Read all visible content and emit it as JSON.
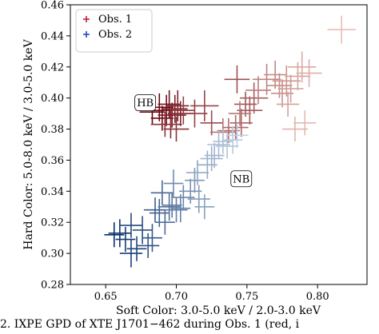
{
  "chart_data": {
    "type": "scatter",
    "xlabel": "Soft Color: 3.0-5.0 keV / 2.0-3.0 keV",
    "ylabel": "Hard Color: 5.0-8.0 keV / 3.0-5.0 keV",
    "xlim": [
      0.625,
      0.835
    ],
    "ylim": [
      0.28,
      0.46
    ],
    "xticks": [
      0.65,
      0.7,
      0.75,
      0.8
    ],
    "xtick_labels": [
      "0.65",
      "0.70",
      "0.75",
      "0.80"
    ],
    "yticks": [
      0.28,
      0.3,
      0.32,
      0.34,
      0.36,
      0.38,
      0.4,
      0.42,
      0.44,
      0.46
    ],
    "ytick_labels": [
      "0.28",
      "0.30",
      "0.32",
      "0.34",
      "0.36",
      "0.38",
      "0.40",
      "0.42",
      "0.44",
      "0.46"
    ],
    "grid": false,
    "legend_position": "top-left",
    "annotations": [
      {
        "text": "HB",
        "x": 0.678,
        "y": 0.397
      },
      {
        "text": "NB",
        "x": 0.746,
        "y": 0.348
      }
    ],
    "series": [
      {
        "name": "Obs. 1",
        "legend_color": "#c8102e",
        "color_start": "#67000d",
        "color_end": "#fee0d2",
        "points": [
          [
            0.683,
            0.391,
            0.009,
            0.008
          ],
          [
            0.688,
            0.394,
            0.01,
            0.009
          ],
          [
            0.69,
            0.387,
            0.008,
            0.008
          ],
          [
            0.693,
            0.392,
            0.009,
            0.01
          ],
          [
            0.695,
            0.396,
            0.008,
            0.009
          ],
          [
            0.697,
            0.389,
            0.01,
            0.008
          ],
          [
            0.699,
            0.393,
            0.009,
            0.009
          ],
          [
            0.701,
            0.395,
            0.008,
            0.01
          ],
          [
            0.703,
            0.39,
            0.009,
            0.008
          ],
          [
            0.696,
            0.383,
            0.008,
            0.009
          ],
          [
            0.7,
            0.38,
            0.009,
            0.008
          ],
          [
            0.692,
            0.383,
            0.01,
            0.008
          ],
          [
            0.705,
            0.392,
            0.008,
            0.009
          ],
          [
            0.713,
            0.39,
            0.009,
            0.009
          ],
          [
            0.72,
            0.395,
            0.01,
            0.01
          ],
          [
            0.725,
            0.384,
            0.008,
            0.008
          ],
          [
            0.743,
            0.412,
            0.009,
            0.009
          ],
          [
            0.749,
            0.396,
            0.008,
            0.008
          ],
          [
            0.752,
            0.392,
            0.009,
            0.009
          ],
          [
            0.755,
            0.4,
            0.01,
            0.01
          ],
          [
            0.746,
            0.384,
            0.008,
            0.009
          ],
          [
            0.742,
            0.381,
            0.009,
            0.008
          ],
          [
            0.737,
            0.379,
            0.008,
            0.008
          ],
          [
            0.733,
            0.378,
            0.009,
            0.009
          ],
          [
            0.745,
            0.39,
            0.008,
            0.008
          ],
          [
            0.758,
            0.405,
            0.009,
            0.009
          ],
          [
            0.764,
            0.412,
            0.01,
            0.01
          ],
          [
            0.77,
            0.415,
            0.008,
            0.009
          ],
          [
            0.773,
            0.408,
            0.009,
            0.008
          ],
          [
            0.775,
            0.403,
            0.008,
            0.009
          ],
          [
            0.778,
            0.411,
            0.01,
            0.01
          ],
          [
            0.781,
            0.406,
            0.009,
            0.009
          ],
          [
            0.779,
            0.396,
            0.008,
            0.008
          ],
          [
            0.786,
            0.414,
            0.009,
            0.009
          ],
          [
            0.789,
            0.42,
            0.01,
            0.01
          ],
          [
            0.794,
            0.416,
            0.009,
            0.009
          ],
          [
            0.784,
            0.38,
            0.009,
            0.008
          ],
          [
            0.791,
            0.384,
            0.008,
            0.008
          ],
          [
            0.817,
            0.444,
            0.01,
            0.009
          ]
        ]
      },
      {
        "name": "Obs. 2",
        "legend_color": "#1f3fb5",
        "color_start": "#08306b",
        "color_end": "#deebf7",
        "points": [
          [
            0.656,
            0.312,
            0.007,
            0.008
          ],
          [
            0.66,
            0.313,
            0.008,
            0.009
          ],
          [
            0.664,
            0.309,
            0.007,
            0.008
          ],
          [
            0.668,
            0.3,
            0.008,
            0.009
          ],
          [
            0.672,
            0.303,
            0.007,
            0.008
          ],
          [
            0.668,
            0.318,
            0.008,
            0.008
          ],
          [
            0.676,
            0.315,
            0.007,
            0.009
          ],
          [
            0.68,
            0.305,
            0.008,
            0.008
          ],
          [
            0.683,
            0.31,
            0.007,
            0.009
          ],
          [
            0.685,
            0.328,
            0.008,
            0.008
          ],
          [
            0.688,
            0.326,
            0.007,
            0.009
          ],
          [
            0.69,
            0.339,
            0.008,
            0.008
          ],
          [
            0.692,
            0.32,
            0.007,
            0.008
          ],
          [
            0.695,
            0.33,
            0.008,
            0.009
          ],
          [
            0.697,
            0.331,
            0.007,
            0.008
          ],
          [
            0.7,
            0.328,
            0.008,
            0.008
          ],
          [
            0.703,
            0.329,
            0.007,
            0.009
          ],
          [
            0.705,
            0.336,
            0.008,
            0.008
          ],
          [
            0.698,
            0.345,
            0.007,
            0.009
          ],
          [
            0.71,
            0.34,
            0.008,
            0.008
          ],
          [
            0.713,
            0.347,
            0.007,
            0.008
          ],
          [
            0.716,
            0.335,
            0.008,
            0.009
          ],
          [
            0.72,
            0.33,
            0.007,
            0.008
          ],
          [
            0.715,
            0.352,
            0.008,
            0.008
          ],
          [
            0.722,
            0.357,
            0.007,
            0.009
          ],
          [
            0.725,
            0.361,
            0.008,
            0.008
          ],
          [
            0.727,
            0.363,
            0.007,
            0.008
          ],
          [
            0.73,
            0.37,
            0.008,
            0.009
          ],
          [
            0.733,
            0.372,
            0.007,
            0.008
          ],
          [
            0.736,
            0.369,
            0.008,
            0.008
          ],
          [
            0.74,
            0.373,
            0.007,
            0.009
          ],
          [
            0.743,
            0.376,
            0.008,
            0.008
          ]
        ]
      }
    ]
  },
  "caption": {
    "text": "2. IXPE GPD of XTE J1701−462 during Obs. 1 (red, i"
  }
}
